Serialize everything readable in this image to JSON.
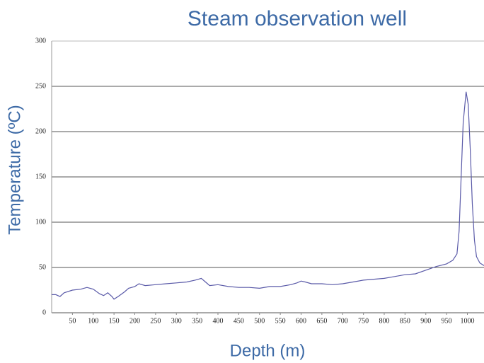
{
  "chart_data": {
    "type": "line",
    "title": "Steam observation well",
    "xlabel": "Depth (m)",
    "ylabel": "Temperature (ºC)",
    "color": "#5a5aa8",
    "grid": true,
    "x": [
      0,
      10,
      20,
      30,
      50,
      70,
      85,
      100,
      115,
      125,
      135,
      145,
      150,
      160,
      175,
      185,
      200,
      210,
      225,
      250,
      275,
      300,
      325,
      345,
      360,
      370,
      380,
      400,
      425,
      450,
      475,
      500,
      525,
      550,
      575,
      590,
      600,
      610,
      625,
      650,
      675,
      700,
      725,
      750,
      775,
      800,
      825,
      850,
      875,
      900,
      925,
      950,
      965,
      975,
      980,
      985,
      990,
      997,
      1002,
      1007,
      1012,
      1017,
      1022,
      1030,
      1040
    ],
    "values": [
      20,
      20,
      18,
      22,
      25,
      26,
      28,
      26,
      21,
      19,
      22,
      18,
      15,
      18,
      23,
      27,
      29,
      32,
      30,
      31,
      32,
      33,
      34,
      36,
      38,
      34,
      30,
      31,
      29,
      28,
      28,
      27,
      29,
      29,
      31,
      33,
      35,
      34,
      32,
      32,
      31,
      32,
      34,
      36,
      37,
      38,
      40,
      42,
      43,
      47,
      51,
      54,
      58,
      65,
      90,
      150,
      210,
      244,
      230,
      180,
      120,
      80,
      62,
      55,
      52
    ],
    "xlim": [
      0,
      1040
    ],
    "xticks": [
      50,
      100,
      150,
      200,
      250,
      300,
      350,
      400,
      450,
      500,
      550,
      600,
      650,
      700,
      750,
      800,
      850,
      900,
      950,
      1000
    ],
    "ylim": [
      0,
      300
    ],
    "yticks": [
      0,
      50,
      100,
      150,
      200,
      250,
      300
    ]
  }
}
